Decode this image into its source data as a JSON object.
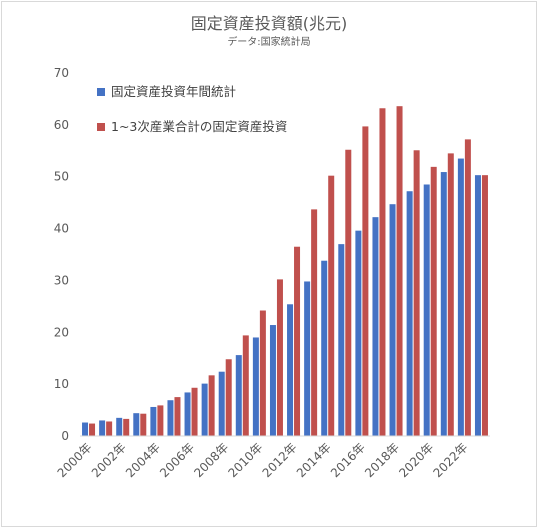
{
  "chart_data": {
    "type": "bar",
    "title": "固定資産投資額(兆元)",
    "subtitle": "データ:国家統計局",
    "ylim": [
      0,
      70
    ],
    "yticks": [
      0,
      10,
      20,
      30,
      40,
      50,
      60,
      70
    ],
    "grid": false,
    "legend_position": "top-left",
    "categories": [
      "2000年",
      "2001年",
      "2002年",
      "2003年",
      "2004年",
      "2005年",
      "2006年",
      "2007年",
      "2008年",
      "2009年",
      "2010年",
      "2011年",
      "2012年",
      "2013年",
      "2014年",
      "2015年",
      "2016年",
      "2017年",
      "2018年",
      "2019年",
      "2020年",
      "2021年",
      "2022年",
      "2023年"
    ],
    "x_tick_labels": [
      "2000年",
      "",
      "2002年",
      "",
      "2004年",
      "",
      "2006年",
      "",
      "2008年",
      "",
      "2010年",
      "",
      "2012年",
      "",
      "2014年",
      "",
      "2016年",
      "",
      "2018年",
      "",
      "2020年",
      "",
      "2022年",
      ""
    ],
    "series": [
      {
        "name": "固定資産投資年間統計",
        "color": "#4472c4",
        "values": [
          2.6,
          3.0,
          3.5,
          4.4,
          5.6,
          6.9,
          8.4,
          10.1,
          12.4,
          15.6,
          19.0,
          21.4,
          25.4,
          29.8,
          33.8,
          37.0,
          39.6,
          42.2,
          44.7,
          47.2,
          48.5,
          50.9,
          53.5,
          50.3
        ]
      },
      {
        "name": "1~3次産業合計の固定資産投資",
        "color": "#c0504d",
        "values": [
          2.4,
          2.8,
          3.3,
          4.3,
          5.9,
          7.5,
          9.3,
          11.7,
          14.8,
          19.4,
          24.2,
          30.2,
          36.5,
          43.7,
          50.2,
          55.2,
          59.7,
          63.2,
          63.6,
          55.1,
          51.9,
          54.5,
          57.2,
          50.3
        ]
      }
    ]
  }
}
